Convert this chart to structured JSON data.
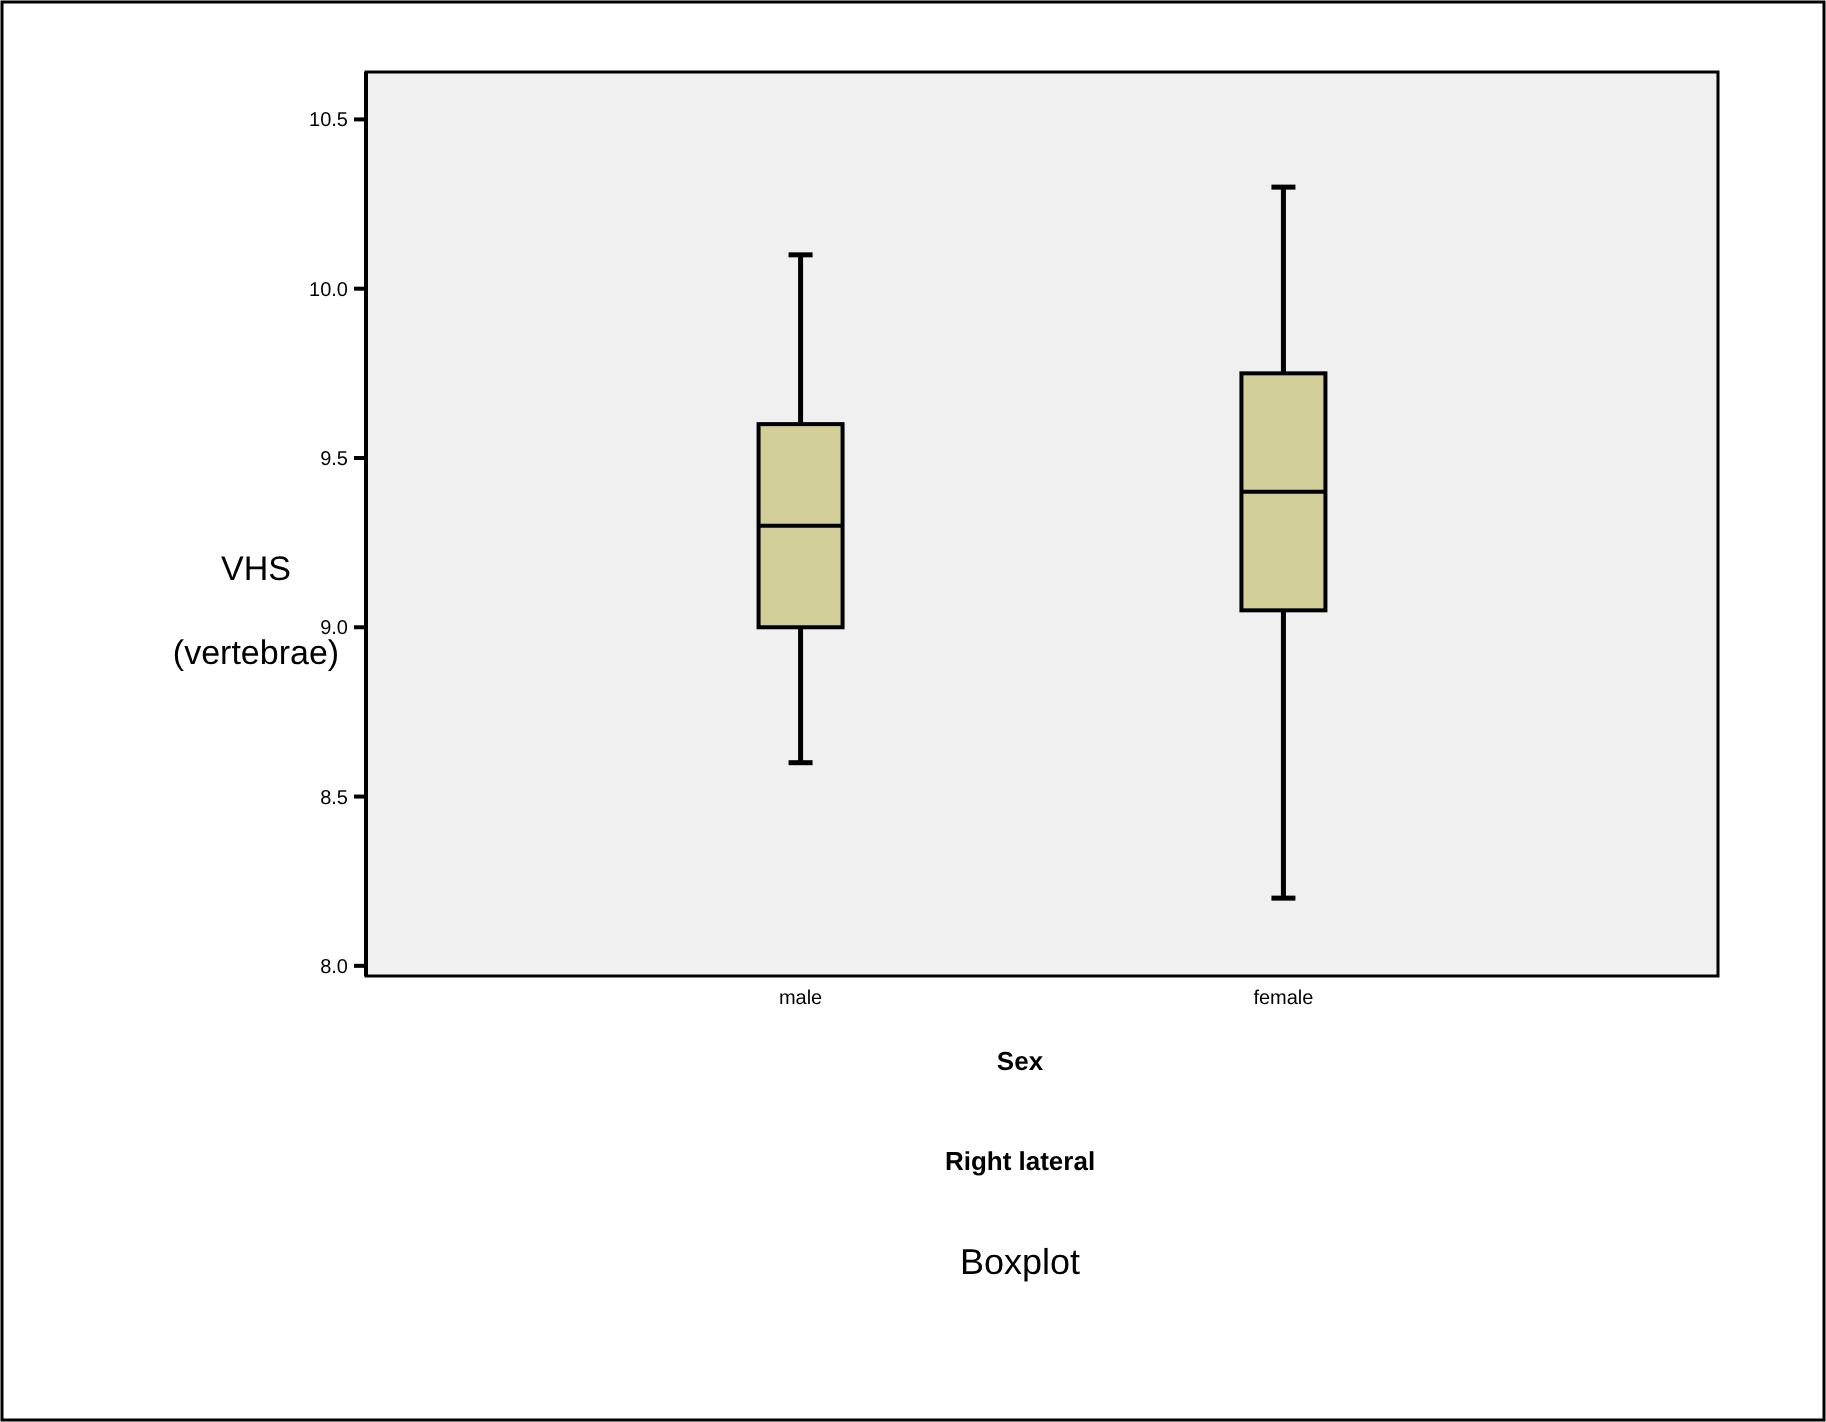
{
  "chart_data": {
    "type": "box",
    "title": "Boxplot",
    "subtitle": "Right lateral",
    "xlabel": "Sex",
    "ylabel": "VHS (vertebrae)",
    "categories": [
      "male",
      "female"
    ],
    "series": [
      {
        "color": "#d3cf99",
        "boxes": [
          {
            "low": 8.6,
            "q1": 9.0,
            "median": 9.3,
            "q3": 9.6,
            "high": 10.1
          },
          {
            "low": 8.2,
            "q1": 9.05,
            "median": 9.4,
            "q3": 9.75,
            "high": 10.3
          }
        ]
      }
    ],
    "ylim": [
      7.97,
      10.64
    ],
    "yticks": [
      {
        "value": 8,
        "label": "8.0"
      },
      {
        "value": 8.5,
        "label": "8.5"
      },
      {
        "value": 9,
        "label": "9.0"
      },
      {
        "value": 9.5,
        "label": "9.5"
      },
      {
        "value": 10,
        "label": "10.0"
      },
      {
        "value": 10.5,
        "label": "10.5"
      }
    ],
    "grid": false
  }
}
